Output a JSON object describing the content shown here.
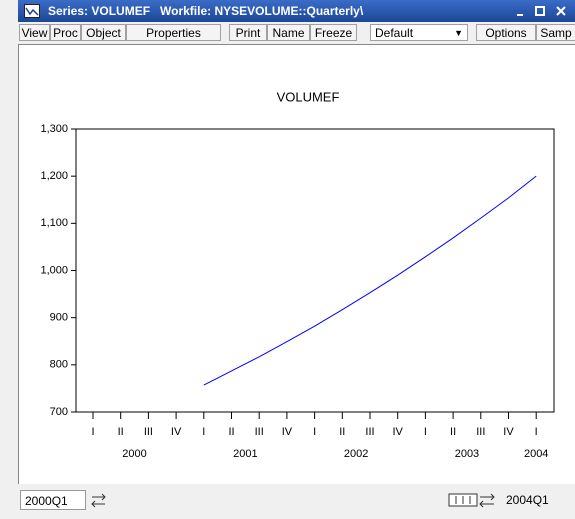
{
  "window": {
    "title": "Series: VOLUMEF   Workfile: NYSEVOLUME::Quarterly\\"
  },
  "toolbar": {
    "buttons": [
      "View",
      "Proc",
      "Object",
      "Properties",
      "Print",
      "Name",
      "Freeze",
      "Default",
      "Options",
      "Samp"
    ]
  },
  "chart_data": {
    "type": "line",
    "title": "VOLUMEF",
    "categories": [
      "I",
      "II",
      "III",
      "IV",
      "I",
      "II",
      "III",
      "IV",
      "I",
      "II",
      "III",
      "IV",
      "I",
      "II",
      "III",
      "IV",
      "I"
    ],
    "year_labels": [
      "2000",
      "2001",
      "2002",
      "2003",
      "2004"
    ],
    "series": [
      {
        "name": "VOLUMEF",
        "color": "#0000ff",
        "values": [
          null,
          null,
          null,
          null,
          757,
          787,
          817,
          849,
          882,
          917,
          953,
          990,
          1029,
          1069,
          1111,
          1154,
          1200
        ]
      }
    ],
    "ylim": [
      700,
      1300
    ],
    "yticks": [
      700,
      800,
      900,
      {
        "value": 1000,
        "label": "1,000"
      },
      {
        "value": 1100,
        "label": "1,100"
      },
      {
        "value": 1200,
        "label": "1,200"
      },
      {
        "value": 1300,
        "label": "1,300"
      }
    ]
  },
  "status": {
    "start": "2000Q1",
    "end": "2004Q1"
  }
}
